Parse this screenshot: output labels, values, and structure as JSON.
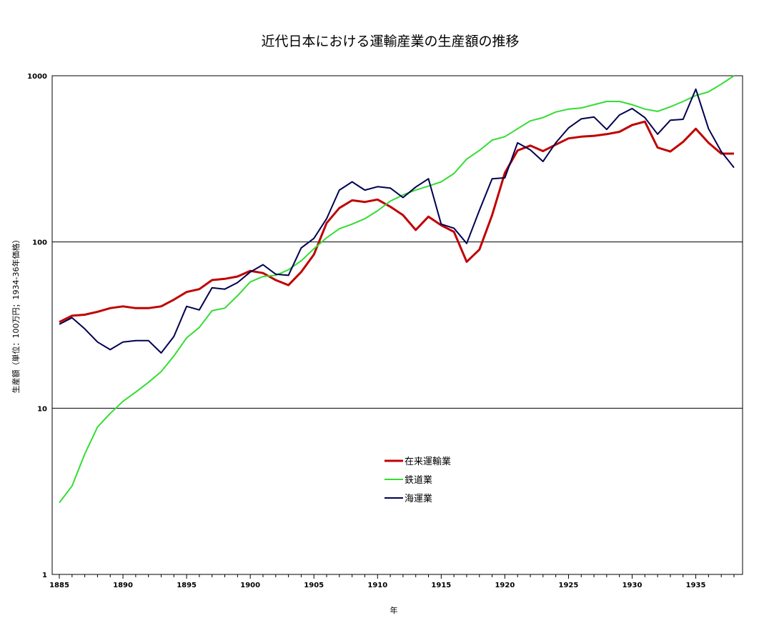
{
  "chart_data": {
    "type": "line",
    "title": "近代日本における運輸産業の生産額の推移",
    "xlabel": "年",
    "ylabel": "生産額（単位：100万円；1934-36年価格）",
    "yscale": "log",
    "ylim": [
      1,
      1000
    ],
    "xlim": [
      1885,
      1938
    ],
    "yticks": [
      "1",
      "10",
      "100",
      "1000"
    ],
    "xticks": [
      "1885",
      "1890",
      "1895",
      "1900",
      "1905",
      "1910",
      "1915",
      "1920",
      "1925",
      "1930",
      "1935"
    ],
    "grid": "horizontal",
    "legend_position": "center-bottom",
    "x": [
      1885,
      1886,
      1887,
      1888,
      1889,
      1890,
      1891,
      1892,
      1893,
      1894,
      1895,
      1896,
      1897,
      1898,
      1899,
      1900,
      1901,
      1902,
      1903,
      1904,
      1905,
      1906,
      1907,
      1908,
      1909,
      1910,
      1911,
      1912,
      1913,
      1914,
      1915,
      1916,
      1917,
      1918,
      1919,
      1920,
      1921,
      1922,
      1923,
      1924,
      1925,
      1926,
      1927,
      1928,
      1929,
      1930,
      1931,
      1932,
      1933,
      1934,
      1935,
      1936,
      1937,
      1938
    ],
    "series": [
      {
        "name": "在来運輸業",
        "color": "#c00000",
        "values": [
          33,
          36,
          36.5,
          38,
          40,
          41,
          40,
          40,
          41,
          45,
          50,
          52,
          59,
          60,
          62,
          67,
          65,
          59,
          55,
          66,
          84,
          130,
          160,
          178,
          174,
          180,
          163,
          145,
          118,
          142,
          126,
          115,
          76,
          90,
          145,
          260,
          355,
          380,
          352,
          385,
          420,
          430,
          435,
          445,
          460,
          505,
          530,
          370,
          350,
          400,
          480,
          395,
          340,
          340
        ]
      },
      {
        "name": "鉄道業",
        "color": "#33dd33",
        "values": [
          2.7,
          3.4,
          5.3,
          7.7,
          9.3,
          11,
          12.5,
          14.3,
          16.6,
          20.6,
          26.5,
          30.6,
          38.6,
          40,
          47.5,
          57.5,
          62,
          63,
          68,
          77,
          91,
          106,
          120,
          128,
          138,
          154,
          176,
          192,
          205,
          217,
          230,
          258,
          315,
          355,
          410,
          430,
          480,
          535,
          560,
          605,
          630,
          640,
          670,
          700,
          700,
          670,
          630,
          610,
          650,
          700,
          760,
          800,
          890,
          1000
        ]
      },
      {
        "name": "海運業",
        "color": "#000050",
        "values": [
          32,
          35,
          30,
          25,
          22.5,
          25,
          25.5,
          25.5,
          21.5,
          27,
          41,
          39,
          53,
          52,
          57,
          66,
          73,
          64,
          63,
          92,
          105,
          138,
          205,
          230,
          205,
          215,
          211,
          185,
          214,
          240,
          128,
          121,
          98,
          155,
          240,
          243,
          395,
          358,
          305,
          395,
          485,
          550,
          565,
          475,
          580,
          635,
          560,
          445,
          540,
          547,
          830,
          480,
          350,
          280
        ]
      }
    ]
  }
}
